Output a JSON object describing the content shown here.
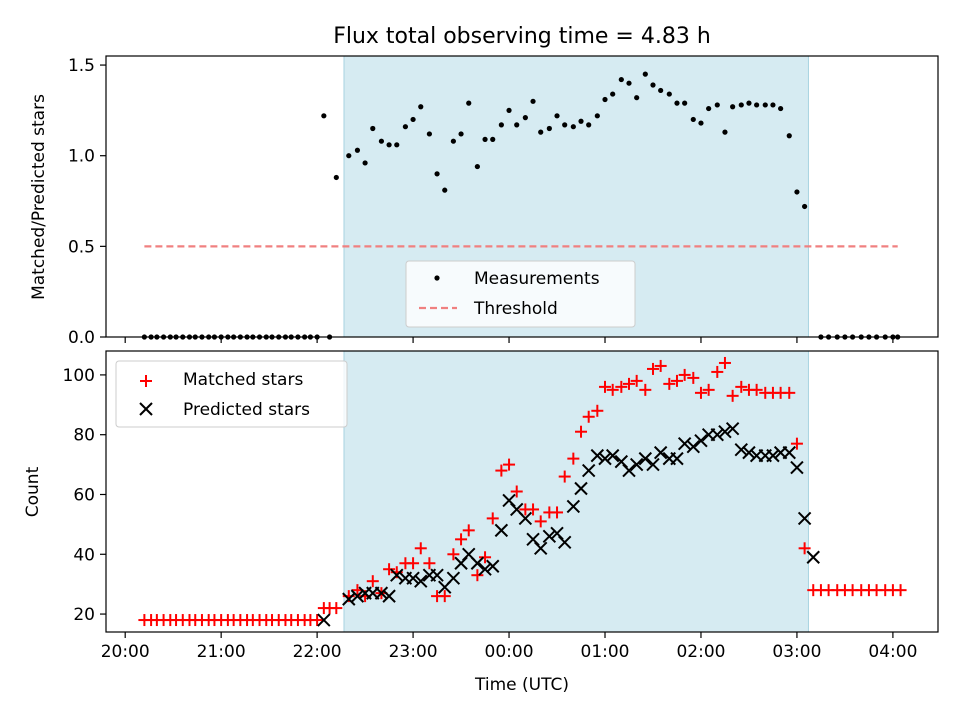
{
  "chart_data": [
    {
      "type": "scatter",
      "title": "Flux total observing time = 4.83 h",
      "xlabel": "",
      "ylabel": "Matched/Predicted stars",
      "ylim": [
        0,
        1.55
      ],
      "xlim": [
        -0.2,
        8.47
      ],
      "x_tick_values": [
        0,
        1,
        2,
        3,
        4,
        5,
        6,
        7,
        8
      ],
      "y_ticks": [
        "0.0",
        "0.5",
        "1.0",
        "1.5"
      ],
      "y_tick_values": [
        0,
        0.5,
        1.0,
        1.5
      ],
      "shaded_span": [
        2.28,
        7.12
      ],
      "legend_position": "lower-center",
      "grid": false,
      "series": [
        {
          "name": "Measurements",
          "color": "#000000",
          "marker": "dot",
          "x": [
            0.2,
            0.27,
            0.33,
            0.4,
            0.47,
            0.53,
            0.6,
            0.67,
            0.73,
            0.8,
            0.87,
            0.93,
            1.0,
            1.07,
            1.13,
            1.2,
            1.27,
            1.33,
            1.4,
            1.47,
            1.53,
            1.6,
            1.67,
            1.73,
            1.8,
            1.87,
            1.93,
            2.0,
            2.07,
            2.13,
            2.2,
            2.33,
            2.42,
            2.5,
            2.58,
            2.67,
            2.75,
            2.83,
            2.92,
            3.0,
            3.08,
            3.17,
            3.25,
            3.33,
            3.42,
            3.5,
            3.58,
            3.67,
            3.75,
            3.83,
            3.92,
            4.0,
            4.08,
            4.17,
            4.25,
            4.33,
            4.42,
            4.5,
            4.58,
            4.67,
            4.75,
            4.83,
            4.92,
            5.0,
            5.08,
            5.17,
            5.25,
            5.33,
            5.42,
            5.5,
            5.58,
            5.67,
            5.75,
            5.83,
            5.92,
            6.0,
            6.08,
            6.17,
            6.25,
            6.33,
            6.42,
            6.5,
            6.58,
            6.67,
            6.75,
            6.83,
            6.92,
            7.0,
            7.08,
            7.25,
            7.33,
            7.42,
            7.5,
            7.58,
            7.67,
            7.75,
            7.83,
            7.92,
            8.0,
            8.05
          ],
          "y": [
            0,
            0,
            0,
            0,
            0,
            0,
            0,
            0,
            0,
            0,
            0,
            0,
            0,
            0,
            0,
            0,
            0,
            0,
            0,
            0,
            0,
            0,
            0,
            0,
            0,
            0,
            0,
            0,
            1.22,
            0,
            0.88,
            1.0,
            1.03,
            0.96,
            1.15,
            1.08,
            1.06,
            1.06,
            1.16,
            1.2,
            1.27,
            1.12,
            0.9,
            0.81,
            1.08,
            1.12,
            1.29,
            0.94,
            1.09,
            1.09,
            1.17,
            1.25,
            1.17,
            1.21,
            1.3,
            1.13,
            1.15,
            1.22,
            1.17,
            1.16,
            1.19,
            1.17,
            1.22,
            1.31,
            1.34,
            1.42,
            1.4,
            1.32,
            1.45,
            1.39,
            1.36,
            1.34,
            1.29,
            1.29,
            1.2,
            1.18,
            1.26,
            1.28,
            1.13,
            1.27,
            1.28,
            1.29,
            1.28,
            1.28,
            1.28,
            1.26,
            1.11,
            0.8,
            0.72,
            0,
            0,
            0,
            0,
            0,
            0,
            0,
            0,
            0,
            0,
            0
          ]
        },
        {
          "name": "Threshold",
          "color": "#f08080",
          "style": "dashed",
          "x": [
            0.2,
            8.05
          ],
          "y": [
            0.5,
            0.5
          ]
        }
      ]
    },
    {
      "type": "scatter",
      "title": "",
      "xlabel": "Time (UTC)",
      "ylabel": "Count",
      "ylim": [
        14,
        108
      ],
      "xlim": [
        -0.2,
        8.47
      ],
      "x_ticks": [
        "20:00",
        "21:00",
        "22:00",
        "23:00",
        "00:00",
        "01:00",
        "02:00",
        "03:00",
        "04:00"
      ],
      "x_tick_values": [
        0,
        1,
        2,
        3,
        4,
        5,
        6,
        7,
        8
      ],
      "y_ticks": [
        "20",
        "40",
        "60",
        "80",
        "100"
      ],
      "y_tick_values": [
        20,
        40,
        60,
        80,
        100
      ],
      "shaded_span": [
        2.28,
        7.12
      ],
      "legend_position": "upper-left",
      "grid": false,
      "series": [
        {
          "name": "Matched stars",
          "color": "#ff0000",
          "marker": "plus",
          "x": [
            0.2,
            0.27,
            0.33,
            0.4,
            0.47,
            0.53,
            0.6,
            0.67,
            0.73,
            0.8,
            0.87,
            0.93,
            1.0,
            1.07,
            1.13,
            1.2,
            1.27,
            1.33,
            1.4,
            1.47,
            1.53,
            1.6,
            1.67,
            1.73,
            1.8,
            1.87,
            1.93,
            2.0,
            2.07,
            2.13,
            2.2,
            2.33,
            2.42,
            2.5,
            2.58,
            2.67,
            2.75,
            2.83,
            2.92,
            3.0,
            3.08,
            3.17,
            3.25,
            3.33,
            3.42,
            3.5,
            3.58,
            3.67,
            3.75,
            3.83,
            3.92,
            4.0,
            4.08,
            4.17,
            4.25,
            4.33,
            4.42,
            4.5,
            4.58,
            4.67,
            4.75,
            4.83,
            4.92,
            5.0,
            5.08,
            5.17,
            5.25,
            5.33,
            5.42,
            5.5,
            5.58,
            5.67,
            5.75,
            5.83,
            5.92,
            6.0,
            6.08,
            6.17,
            6.25,
            6.33,
            6.42,
            6.5,
            6.58,
            6.67,
            6.75,
            6.83,
            6.92,
            7.0,
            7.08,
            7.17,
            7.25,
            7.33,
            7.42,
            7.5,
            7.58,
            7.67,
            7.75,
            7.83,
            7.92,
            8.0,
            8.08
          ],
          "y": [
            18,
            18,
            18,
            18,
            18,
            18,
            18,
            18,
            18,
            18,
            18,
            18,
            18,
            18,
            18,
            18,
            18,
            18,
            18,
            18,
            18,
            18,
            18,
            18,
            18,
            18,
            18,
            18,
            22,
            22,
            22,
            26,
            28,
            26,
            31,
            27,
            35,
            34,
            37,
            37,
            42,
            37,
            26,
            26,
            40,
            45,
            48,
            33,
            39,
            52,
            68,
            70,
            61,
            55,
            55,
            51,
            54,
            54,
            66,
            72,
            81,
            86,
            88,
            96,
            95,
            96,
            97,
            98,
            95,
            102,
            103,
            97,
            98,
            100,
            99,
            94,
            95,
            101,
            104,
            93,
            96,
            95,
            95,
            94,
            94,
            94,
            94,
            77,
            42,
            28,
            28,
            28,
            28,
            28,
            28,
            28,
            28,
            28,
            28,
            28,
            28
          ]
        },
        {
          "name": "Predicted stars",
          "color": "#000000",
          "marker": "x",
          "x": [
            2.07,
            2.33,
            2.42,
            2.5,
            2.58,
            2.67,
            2.75,
            2.83,
            2.92,
            3.0,
            3.08,
            3.17,
            3.25,
            3.33,
            3.42,
            3.5,
            3.58,
            3.67,
            3.75,
            3.83,
            3.92,
            4.0,
            4.08,
            4.17,
            4.25,
            4.33,
            4.42,
            4.5,
            4.58,
            4.67,
            4.75,
            4.83,
            4.92,
            5.0,
            5.08,
            5.17,
            5.25,
            5.33,
            5.42,
            5.5,
            5.58,
            5.67,
            5.75,
            5.83,
            5.92,
            6.0,
            6.08,
            6.17,
            6.25,
            6.33,
            6.42,
            6.5,
            6.58,
            6.67,
            6.75,
            6.83,
            6.92,
            7.0,
            7.08,
            7.17
          ],
          "y": [
            18,
            25,
            26,
            27,
            27,
            27,
            26,
            33,
            32,
            32,
            31,
            33,
            33,
            29,
            32,
            37,
            40,
            37,
            35,
            36,
            48,
            58,
            55,
            52,
            45,
            42,
            46,
            47,
            44,
            56,
            62,
            68,
            73,
            72,
            73,
            71,
            68,
            70,
            72,
            70,
            74,
            72,
            72,
            77,
            76,
            78,
            80,
            80,
            81,
            82,
            75,
            74,
            73,
            73,
            73,
            74,
            74,
            69,
            52,
            39
          ]
        }
      ]
    }
  ]
}
